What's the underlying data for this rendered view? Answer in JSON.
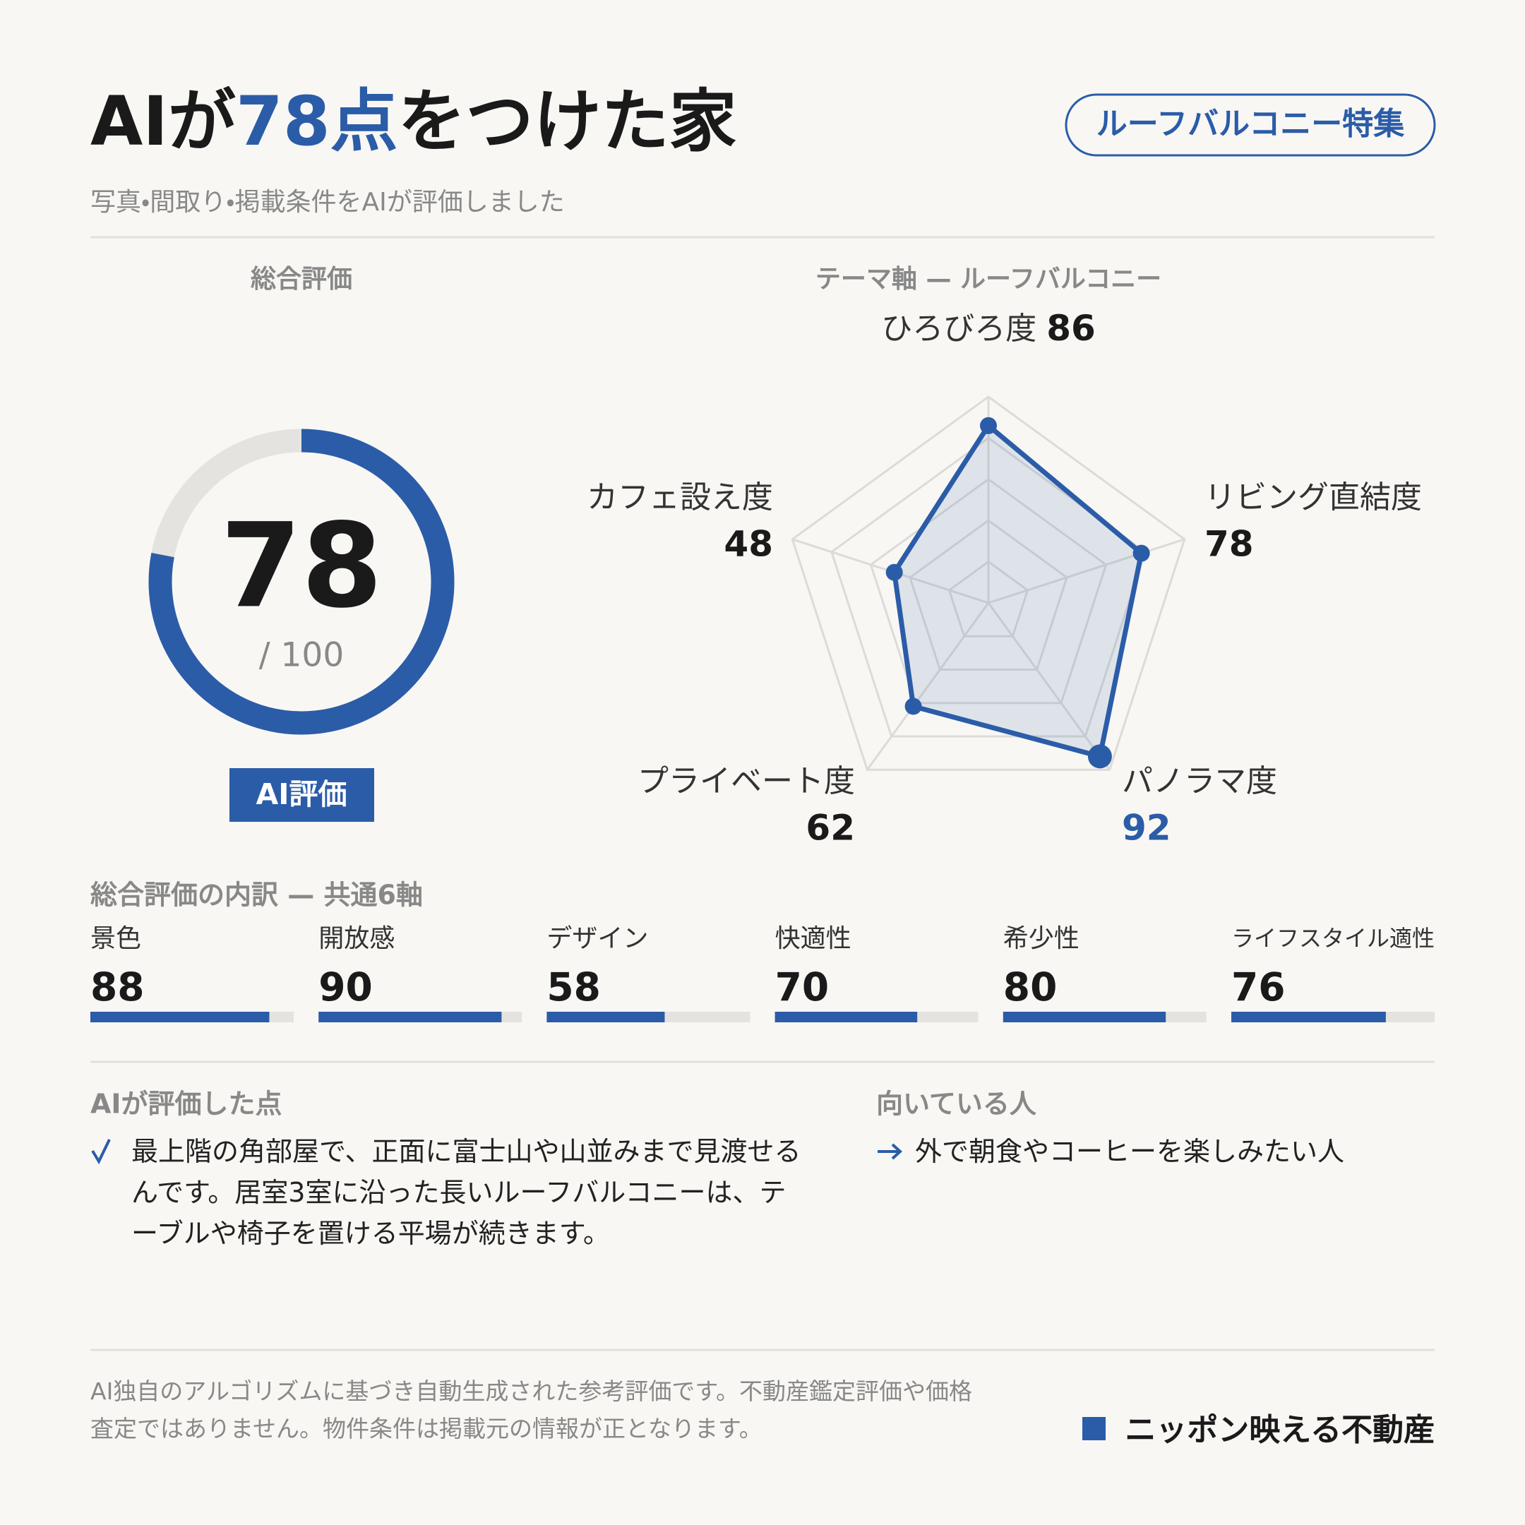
{
  "header": {
    "title": {
      "before": "AIが",
      "highlight": "78点",
      "after": "をつけた家"
    },
    "badge": "ルーフバルコニー特集",
    "subtitle": "写真・間取り・掲載条件をAIが評価しました"
  },
  "gauge": {
    "heading": "総合評価",
    "score": 78,
    "max": {
      "value": 100,
      "label": "/ 100"
    },
    "badge": "AI評価"
  },
  "radar": {
    "heading": "テーマ軸 — ルーフバルコニー",
    "rlim": [
      0,
      100
    ],
    "rticks": [
      20,
      40,
      60,
      80,
      100
    ],
    "axes": [
      {
        "name": "ひろびろ度",
        "value": 86
      },
      {
        "name": "リビング直結度",
        "value": 78
      },
      {
        "name": "パノラマ度",
        "value": 92,
        "highlight": true
      },
      {
        "name": "プライベート度",
        "value": 62
      },
      {
        "name": "カフェ設え度",
        "value": 48
      }
    ]
  },
  "breakdown": {
    "heading": "総合評価の内訳 — 共通6軸",
    "xlim": [
      0,
      100
    ],
    "items": [
      {
        "name": "景色",
        "value": 88
      },
      {
        "name": "開放感",
        "value": 90
      },
      {
        "name": "デザイン",
        "value": 58
      },
      {
        "name": "快適性",
        "value": 70
      },
      {
        "name": "希少性",
        "value": 80
      },
      {
        "name": "ライフスタイル適性",
        "value": 76
      }
    ]
  },
  "highlights": {
    "heading": "AIが評価した点",
    "items": [
      "最上階の角部屋で、正面に富士山や山並みまで見渡せるんです。居室3室に沿った長いルーフバルコニーは、テーブルや椅子を置ける平場が続きます。"
    ]
  },
  "suited": {
    "heading": "向いている人",
    "items": [
      "外で朝食やコーヒーを楽しみたい人"
    ]
  },
  "footer": {
    "disclaimer": "AI独自のアルゴリズムに基づき自動生成された参考評価です。不動産鑑定評価や価格査定ではありません。物件条件は掲載元の情報が正となります。",
    "brand": "ニッポン映える不動産"
  }
}
